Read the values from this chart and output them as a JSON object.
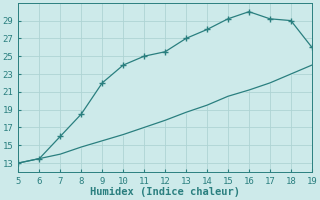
{
  "upper_x": [
    5,
    6,
    7,
    8,
    9,
    10,
    11,
    12,
    13,
    14,
    15,
    16,
    17,
    18,
    19
  ],
  "upper_y": [
    13,
    13.5,
    16,
    18.5,
    22,
    24,
    25,
    25.5,
    27,
    28,
    29.2,
    30,
    29.2,
    29,
    26
  ],
  "lower_x": [
    5,
    6,
    7,
    8,
    9,
    10,
    11,
    12,
    13,
    14,
    15,
    16,
    17,
    18,
    19
  ],
  "lower_y": [
    13,
    13.5,
    14.0,
    14.8,
    15.5,
    16.2,
    17.0,
    17.8,
    18.7,
    19.5,
    20.5,
    21.2,
    22.0,
    23.0,
    24.0
  ],
  "line_color": "#2a7f7f",
  "bg_color": "#cdeaea",
  "grid_color": "#aed4d4",
  "xlabel": "Humidex (Indice chaleur)",
  "xlim": [
    5,
    19
  ],
  "ylim": [
    12,
    31
  ],
  "xticks": [
    5,
    6,
    7,
    8,
    9,
    10,
    11,
    12,
    13,
    14,
    15,
    16,
    17,
    18,
    19
  ],
  "yticks": [
    13,
    15,
    17,
    19,
    21,
    23,
    25,
    27,
    29
  ],
  "tick_fontsize": 6.5,
  "xlabel_fontsize": 7.5
}
